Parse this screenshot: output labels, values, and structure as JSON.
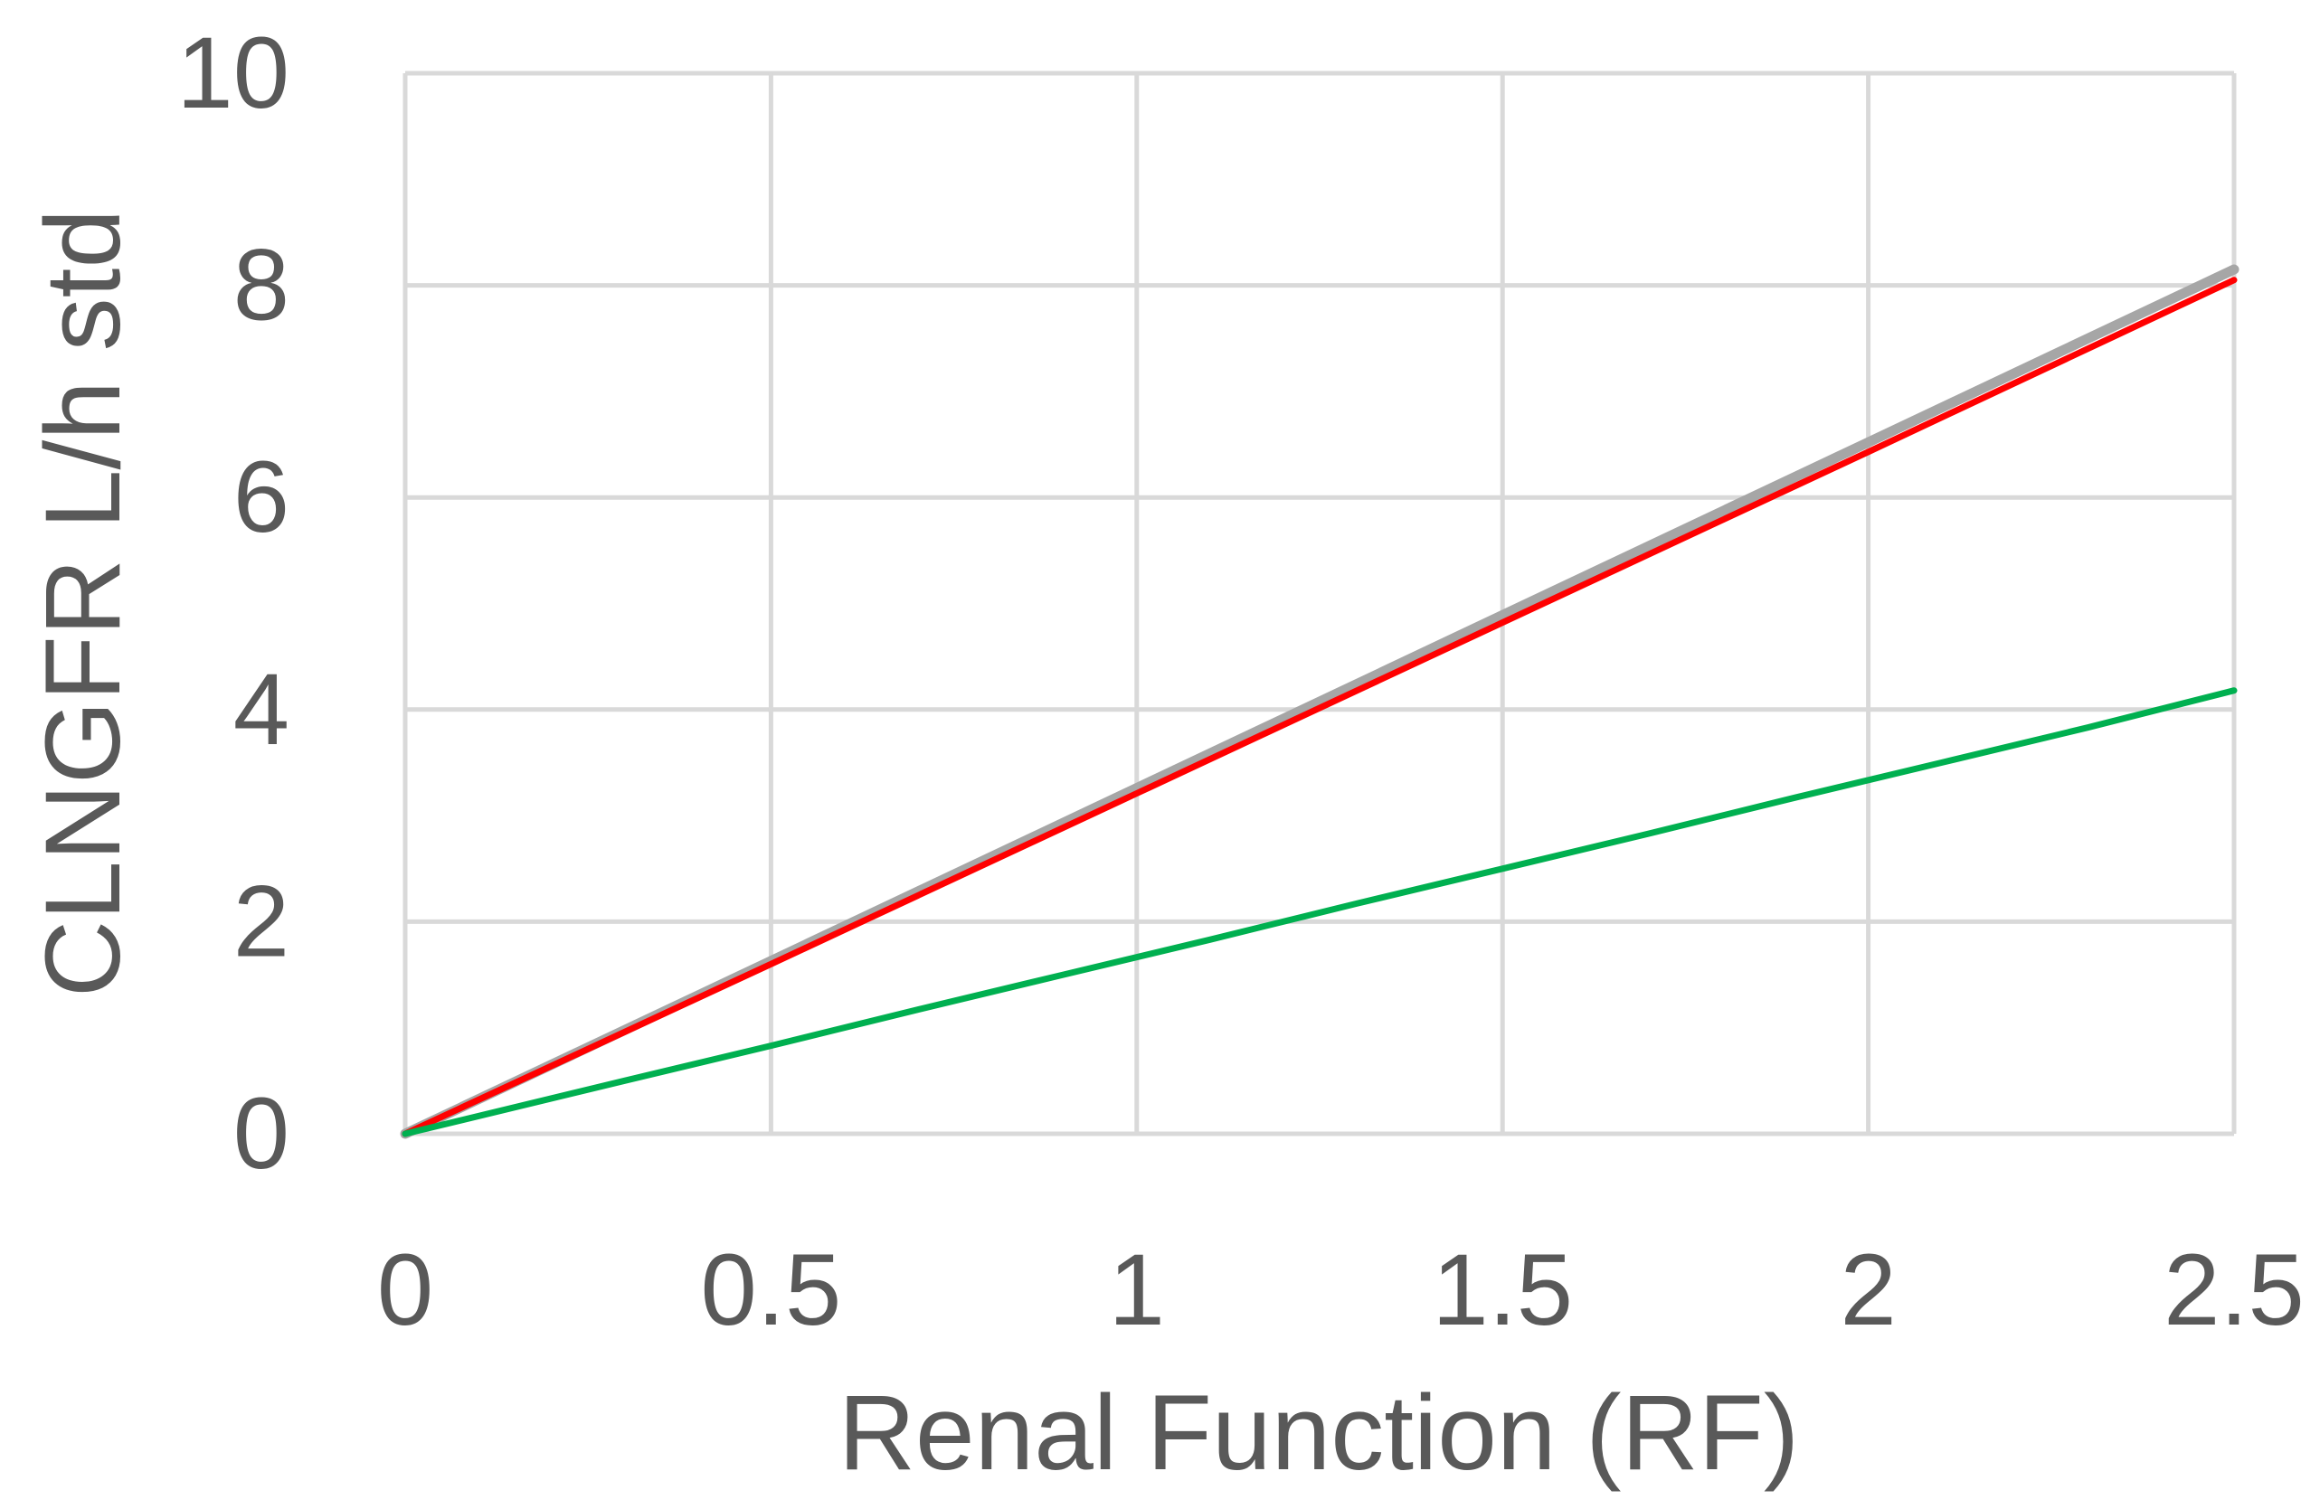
{
  "chart_data": {
    "type": "line",
    "title": "",
    "xlabel": "Renal Function (RF)",
    "ylabel": "CLNGFR L/h std",
    "xlim": [
      0,
      2.5
    ],
    "ylim": [
      0,
      10
    ],
    "xticks": [
      0,
      0.5,
      1,
      1.5,
      2,
      2.5
    ],
    "yticks": [
      0,
      2,
      4,
      6,
      8,
      10
    ],
    "xtick_labels": [
      "0",
      "0.5",
      "1",
      "1.5",
      "2",
      "2.5"
    ],
    "ytick_labels": [
      "0",
      "2",
      "4",
      "6",
      "8",
      "10"
    ],
    "grid": true,
    "legend": "none",
    "series": [
      {
        "color": "#a6a6a6",
        "x": [
          0,
          0.5,
          1,
          1.5,
          2,
          2.5
        ],
        "y": [
          0,
          1.63,
          3.26,
          4.89,
          6.52,
          8.15
        ]
      },
      {
        "color": "#ff0000",
        "x": [
          0,
          0.5,
          1,
          1.5,
          2,
          2.5
        ],
        "y": [
          0,
          1.6,
          3.21,
          4.82,
          6.43,
          8.05
        ]
      },
      {
        "color": "#00b050",
        "x": [
          0,
          0.3,
          0.5,
          0.7,
          0.9,
          1.1,
          1.3,
          1.5,
          1.7,
          1.9,
          2.1,
          2.3,
          2.5
        ],
        "y": [
          0,
          0.5,
          0.83,
          1.17,
          1.5,
          1.83,
          2.17,
          2.5,
          2.83,
          3.17,
          3.5,
          3.83,
          4.18
        ]
      }
    ]
  }
}
